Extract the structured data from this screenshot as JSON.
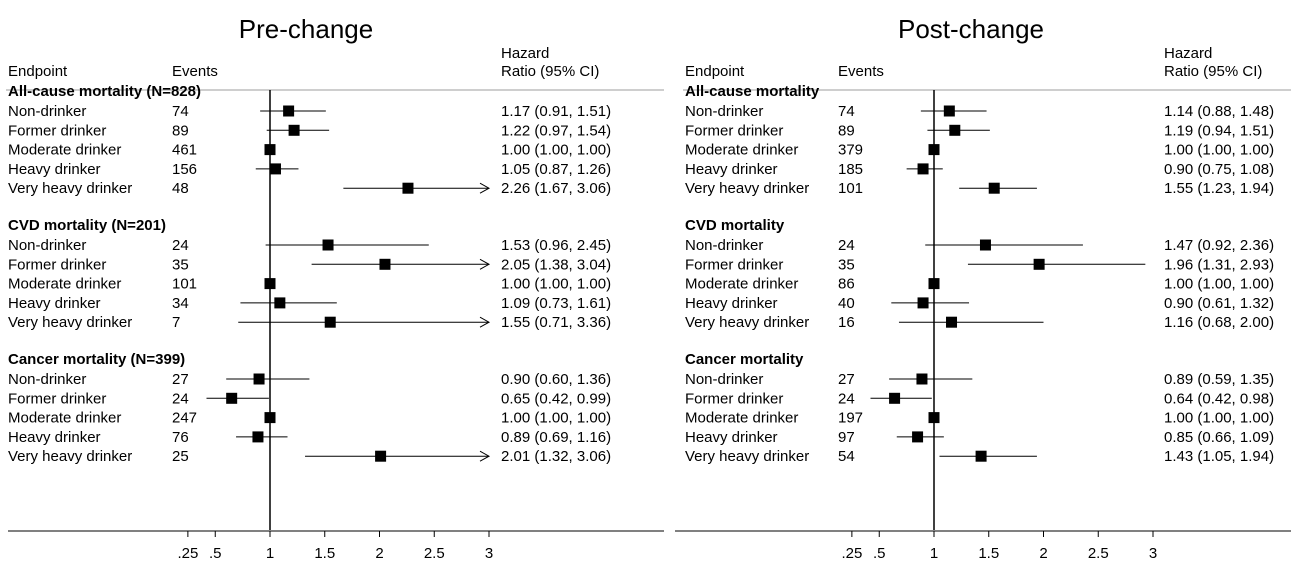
{
  "chart_data": [
    {
      "type": "forest",
      "title": "Pre-change",
      "col_headers": {
        "endpoint": "Endpoint",
        "events": "Events",
        "hr_line1": "Hazard",
        "hr_line2": "Ratio (95% CI)"
      },
      "xticks": [
        {
          "value": 0.25,
          "label": ".25"
        },
        {
          "value": 0.5,
          "label": ".5"
        },
        {
          "value": 1,
          "label": "1"
        },
        {
          "value": 1.5,
          "label": "1.5"
        },
        {
          "value": 2,
          "label": "2"
        },
        {
          "value": 2.5,
          "label": "2.5"
        },
        {
          "value": 3,
          "label": "3"
        }
      ],
      "xlim": [
        0,
        3
      ],
      "reference_line": 1,
      "groups": [
        {
          "title": "All-cause mortality (N=828)",
          "rows": [
            {
              "label": "Non-drinker",
              "events": "74",
              "hr": 1.17,
              "lo": 0.91,
              "hi": 1.51,
              "text": "1.17 (0.91, 1.51)"
            },
            {
              "label": "Former drinker",
              "events": "89",
              "hr": 1.22,
              "lo": 0.97,
              "hi": 1.54,
              "text": "1.22 (0.97, 1.54)"
            },
            {
              "label": "Moderate drinker",
              "events": "461",
              "hr": 1.0,
              "lo": 1.0,
              "hi": 1.0,
              "text": "1.00 (1.00, 1.00)"
            },
            {
              "label": "Heavy drinker",
              "events": "156",
              "hr": 1.05,
              "lo": 0.87,
              "hi": 1.26,
              "text": "1.05 (0.87, 1.26)"
            },
            {
              "label": "Very heavy drinker",
              "events": "48",
              "hr": 2.26,
              "lo": 1.67,
              "hi": 3.06,
              "text": "2.26 (1.67, 3.06)"
            }
          ]
        },
        {
          "title": "CVD mortality (N=201)",
          "rows": [
            {
              "label": "Non-drinker",
              "events": "24",
              "hr": 1.53,
              "lo": 0.96,
              "hi": 2.45,
              "text": "1.53 (0.96, 2.45)"
            },
            {
              "label": "Former drinker",
              "events": "35",
              "hr": 2.05,
              "lo": 1.38,
              "hi": 3.04,
              "text": "2.05 (1.38, 3.04)"
            },
            {
              "label": "Moderate drinker",
              "events": "101",
              "hr": 1.0,
              "lo": 1.0,
              "hi": 1.0,
              "text": "1.00 (1.00, 1.00)"
            },
            {
              "label": "Heavy drinker",
              "events": "34",
              "hr": 1.09,
              "lo": 0.73,
              "hi": 1.61,
              "text": "1.09 (0.73, 1.61)"
            },
            {
              "label": "Very heavy drinker",
              "events": "7",
              "hr": 1.55,
              "lo": 0.71,
              "hi": 3.36,
              "text": "1.55 (0.71, 3.36)"
            }
          ]
        },
        {
          "title": "Cancer mortality (N=399)",
          "rows": [
            {
              "label": "Non-drinker",
              "events": "27",
              "hr": 0.9,
              "lo": 0.6,
              "hi": 1.36,
              "text": "0.90 (0.60, 1.36)"
            },
            {
              "label": "Former drinker",
              "events": "24",
              "hr": 0.65,
              "lo": 0.42,
              "hi": 0.99,
              "text": "0.65 (0.42, 0.99)"
            },
            {
              "label": "Moderate drinker",
              "events": "247",
              "hr": 1.0,
              "lo": 1.0,
              "hi": 1.0,
              "text": "1.00 (1.00, 1.00)"
            },
            {
              "label": "Heavy drinker",
              "events": "76",
              "hr": 0.89,
              "lo": 0.69,
              "hi": 1.16,
              "text": "0.89 (0.69, 1.16)"
            },
            {
              "label": "Very heavy drinker",
              "events": "25",
              "hr": 2.01,
              "lo": 1.32,
              "hi": 3.06,
              "text": "2.01 (1.32, 3.06)"
            }
          ]
        }
      ]
    },
    {
      "type": "forest",
      "title": "Post-change",
      "col_headers": {
        "endpoint": "Endpoint",
        "events": "Events",
        "hr_line1": "Hazard",
        "hr_line2": "Ratio (95% CI)"
      },
      "xticks": [
        {
          "value": 0.25,
          "label": ".25"
        },
        {
          "value": 0.5,
          "label": ".5"
        },
        {
          "value": 1,
          "label": "1"
        },
        {
          "value": 1.5,
          "label": "1.5"
        },
        {
          "value": 2,
          "label": "2"
        },
        {
          "value": 2.5,
          "label": "2.5"
        },
        {
          "value": 3,
          "label": "3"
        }
      ],
      "xlim": [
        0,
        3
      ],
      "reference_line": 1,
      "groups": [
        {
          "title": "All-cause mortality",
          "rows": [
            {
              "label": "Non-drinker",
              "events": "74",
              "hr": 1.14,
              "lo": 0.88,
              "hi": 1.48,
              "text": "1.14 (0.88, 1.48)"
            },
            {
              "label": "Former drinker",
              "events": "89",
              "hr": 1.19,
              "lo": 0.94,
              "hi": 1.51,
              "text": "1.19 (0.94, 1.51)"
            },
            {
              "label": "Moderate drinker",
              "events": "379",
              "hr": 1.0,
              "lo": 1.0,
              "hi": 1.0,
              "text": "1.00 (1.00, 1.00)"
            },
            {
              "label": "Heavy drinker",
              "events": "185",
              "hr": 0.9,
              "lo": 0.75,
              "hi": 1.08,
              "text": "0.90 (0.75, 1.08)"
            },
            {
              "label": "Very heavy drinker",
              "events": "101",
              "hr": 1.55,
              "lo": 1.23,
              "hi": 1.94,
              "text": "1.55 (1.23, 1.94)"
            }
          ]
        },
        {
          "title": "CVD mortality",
          "rows": [
            {
              "label": "Non-drinker",
              "events": "24",
              "hr": 1.47,
              "lo": 0.92,
              "hi": 2.36,
              "text": "1.47 (0.92, 2.36)"
            },
            {
              "label": "Former drinker",
              "events": "35",
              "hr": 1.96,
              "lo": 1.31,
              "hi": 2.93,
              "text": "1.96 (1.31, 2.93)"
            },
            {
              "label": "Moderate drinker",
              "events": "86",
              "hr": 1.0,
              "lo": 1.0,
              "hi": 1.0,
              "text": "1.00 (1.00, 1.00)"
            },
            {
              "label": "Heavy drinker",
              "events": "40",
              "hr": 0.9,
              "lo": 0.61,
              "hi": 1.32,
              "text": "0.90 (0.61, 1.32)"
            },
            {
              "label": "Very heavy drinker",
              "events": "16",
              "hr": 1.16,
              "lo": 0.68,
              "hi": 2.0,
              "text": "1.16 (0.68, 2.00)"
            }
          ]
        },
        {
          "title": "Cancer mortality",
          "rows": [
            {
              "label": "Non-drinker",
              "events": "27",
              "hr": 0.89,
              "lo": 0.59,
              "hi": 1.35,
              "text": "0.89 (0.59, 1.35)"
            },
            {
              "label": "Former drinker",
              "events": "24",
              "hr": 0.64,
              "lo": 0.42,
              "hi": 0.98,
              "text": "0.64 (0.42, 0.98)"
            },
            {
              "label": "Moderate drinker",
              "events": "197",
              "hr": 1.0,
              "lo": 1.0,
              "hi": 1.0,
              "text": "1.00 (1.00, 1.00)"
            },
            {
              "label": "Heavy drinker",
              "events": "97",
              "hr": 0.85,
              "lo": 0.66,
              "hi": 1.09,
              "text": "0.85 (0.66, 1.09)"
            },
            {
              "label": "Very heavy drinker",
              "events": "54",
              "hr": 1.43,
              "lo": 1.05,
              "hi": 1.94,
              "text": "1.43 (1.05, 1.94)"
            }
          ]
        }
      ]
    }
  ]
}
